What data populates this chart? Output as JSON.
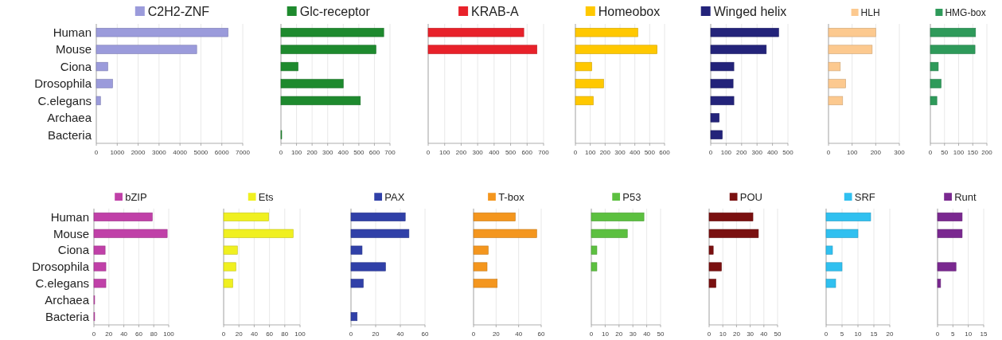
{
  "chart_data": [
    {
      "type": "bar",
      "orientation": "horizontal",
      "categories": [
        "Human",
        "Mouse",
        "Ciona",
        "Drosophila",
        "C.elegans",
        "Archaea",
        "Bacteria"
      ],
      "series": [
        {
          "name": "C2H2-ZNF",
          "color": "#9b9bdb",
          "values": [
            6300,
            4800,
            550,
            780,
            200,
            null,
            null
          ]
        }
      ],
      "xlim": [
        0,
        7000
      ],
      "xticks": [
        0,
        1000,
        2000,
        3000,
        4000,
        5000,
        6000,
        7000
      ],
      "grid": "x",
      "legend": "top"
    },
    {
      "type": "bar",
      "orientation": "horizontal",
      "categories": [
        null,
        null,
        null,
        null,
        null,
        null,
        null
      ],
      "series": [
        {
          "name": "Glc-receptor",
          "color": "#1e8a2e",
          "values": [
            660,
            610,
            110,
            400,
            510,
            null,
            5
          ]
        }
      ],
      "xlim": [
        0,
        700
      ],
      "xticks": [
        0,
        100,
        200,
        300,
        400,
        500,
        600,
        700
      ],
      "grid": "x",
      "legend": "top",
      "tick_labels": "x"
    },
    {
      "type": "bar",
      "orientation": "horizontal",
      "categories": [
        null,
        null,
        null,
        null,
        null,
        null,
        null
      ],
      "series": [
        {
          "name": "KRAB-A",
          "color": "#e8212a",
          "values": [
            580,
            660,
            null,
            null,
            null,
            null,
            null
          ]
        }
      ],
      "xlim": [
        0,
        700
      ],
      "xticks": [
        0,
        100,
        200,
        300,
        400,
        500,
        600,
        700
      ],
      "grid": "x",
      "legend": "top",
      "tick_labels": "x"
    },
    {
      "type": "bar",
      "orientation": "horizontal",
      "categories": [
        null,
        null,
        null,
        null,
        null,
        null,
        null
      ],
      "series": [
        {
          "name": "Homeobox",
          "color": "#ffc800",
          "values": [
            420,
            550,
            110,
            190,
            120,
            null,
            null
          ]
        }
      ],
      "xlim": [
        0,
        600
      ],
      "xticks": [
        0,
        100,
        200,
        300,
        400,
        500,
        600
      ],
      "grid": "x",
      "legend": "top",
      "tick_labels": "x"
    },
    {
      "type": "bar",
      "orientation": "horizontal",
      "categories": [
        null,
        null,
        null,
        null,
        null,
        null,
        null
      ],
      "series": [
        {
          "name": "Winged helix",
          "color": "#23237a",
          "values": [
            440,
            360,
            150,
            145,
            150,
            55,
            75
          ]
        }
      ],
      "xlim": [
        0,
        500
      ],
      "xticks": [
        0,
        100,
        200,
        300,
        400,
        500
      ],
      "grid": "x",
      "legend": "top",
      "tick_labels": "x"
    },
    {
      "type": "bar",
      "orientation": "horizontal",
      "categories": [
        null,
        null,
        null,
        null,
        null,
        null,
        null
      ],
      "series": [
        {
          "name": "HLH",
          "color": "#fcc98f",
          "values": [
            200,
            185,
            50,
            73,
            60,
            null,
            null
          ]
        }
      ],
      "xlim": [
        0,
        300
      ],
      "xticks": [
        0,
        100,
        200,
        300
      ],
      "grid": "x",
      "legend": "top",
      "tick_labels": "x"
    },
    {
      "type": "bar",
      "orientation": "horizontal",
      "categories": [
        null,
        null,
        null,
        null,
        null,
        null,
        null
      ],
      "series": [
        {
          "name": "HMG-box",
          "color": "#2e9a5a",
          "values": [
            160,
            158,
            28,
            38,
            23,
            null,
            null
          ]
        }
      ],
      "xlim": [
        0,
        200
      ],
      "xticks": [
        0,
        50,
        100,
        150,
        200
      ],
      "grid": "x",
      "legend": "top",
      "tick_labels": "x"
    },
    {
      "type": "bar",
      "orientation": "horizontal",
      "categories": [
        "Human",
        "Mouse",
        "Ciona",
        "Drosophila",
        "C.elegans",
        "Archaea",
        "Bacteria"
      ],
      "series": [
        {
          "name": "bZIP",
          "color": "#c040a8",
          "values": [
            78,
            98,
            15,
            16,
            16,
            1,
            1
          ]
        }
      ],
      "xlim": [
        0,
        100
      ],
      "xticks": [
        0,
        20,
        40,
        60,
        80,
        100
      ],
      "grid": "x",
      "legend": "top"
    },
    {
      "type": "bar",
      "orientation": "horizontal",
      "categories": [
        null,
        null,
        null,
        null,
        null,
        null,
        null
      ],
      "series": [
        {
          "name": "Ets",
          "color": "#f0f020",
          "values": [
            59,
            91,
            18,
            16,
            12,
            null,
            null
          ]
        }
      ],
      "xlim": [
        0,
        100
      ],
      "xticks": [
        0,
        20,
        40,
        60,
        80,
        100
      ],
      "grid": "x",
      "legend": "top",
      "tick_labels": "x"
    },
    {
      "type": "bar",
      "orientation": "horizontal",
      "categories": [
        null,
        null,
        null,
        null,
        null,
        null,
        null
      ],
      "series": [
        {
          "name": "PAX",
          "color": "#3040a8",
          "values": [
            44,
            47,
            9,
            28,
            10,
            null,
            5
          ]
        }
      ],
      "xlim": [
        0,
        60
      ],
      "xticks": [
        0,
        20,
        40,
        60
      ],
      "grid": "x",
      "legend": "top",
      "tick_labels": "x"
    },
    {
      "type": "bar",
      "orientation": "horizontal",
      "categories": [
        null,
        null,
        null,
        null,
        null,
        null,
        null
      ],
      "series": [
        {
          "name": "T-box",
          "color": "#f4961e",
          "values": [
            37,
            56,
            13,
            12,
            21,
            null,
            null
          ]
        }
      ],
      "xlim": [
        0,
        60
      ],
      "xticks": [
        0,
        20,
        40,
        60
      ],
      "grid": "x",
      "legend": "top",
      "tick_labels": "x"
    },
    {
      "type": "bar",
      "orientation": "horizontal",
      "categories": [
        null,
        null,
        null,
        null,
        null,
        null,
        null
      ],
      "series": [
        {
          "name": "P53",
          "color": "#5cc040",
          "values": [
            38,
            26,
            4,
            4,
            null,
            null,
            null
          ]
        }
      ],
      "xlim": [
        0,
        50
      ],
      "xticks": [
        0,
        10,
        20,
        30,
        40,
        50
      ],
      "grid": "x",
      "legend": "top",
      "tick_labels": "x"
    },
    {
      "type": "bar",
      "orientation": "horizontal",
      "categories": [
        null,
        null,
        null,
        null,
        null,
        null,
        null
      ],
      "series": [
        {
          "name": "POU",
          "color": "#7a1010",
          "values": [
            32,
            36,
            3,
            9,
            5,
            null,
            null
          ]
        }
      ],
      "xlim": [
        0,
        50
      ],
      "xticks": [
        0,
        10,
        20,
        30,
        40,
        50
      ],
      "grid": "x",
      "legend": "top",
      "tick_labels": "x"
    },
    {
      "type": "bar",
      "orientation": "horizontal",
      "categories": [
        null,
        null,
        null,
        null,
        null,
        null,
        null
      ],
      "series": [
        {
          "name": "SRF",
          "color": "#30c0f0",
          "values": [
            14,
            10,
            2,
            5,
            3,
            null,
            null
          ]
        }
      ],
      "xlim": [
        0,
        20
      ],
      "xticks": [
        0,
        5,
        10,
        15,
        20
      ],
      "grid": "x",
      "legend": "top",
      "tick_labels": "x"
    },
    {
      "type": "bar",
      "orientation": "horizontal",
      "categories": [
        null,
        null,
        null,
        null,
        null,
        null,
        null
      ],
      "series": [
        {
          "name": "Runt",
          "color": "#7a2890",
          "values": [
            8,
            8,
            null,
            6,
            1,
            null,
            null
          ]
        }
      ],
      "xlim": [
        0,
        15
      ],
      "xticks": [
        0,
        5,
        10,
        15
      ],
      "grid": "x",
      "legend": "top",
      "tick_labels": "x"
    }
  ]
}
